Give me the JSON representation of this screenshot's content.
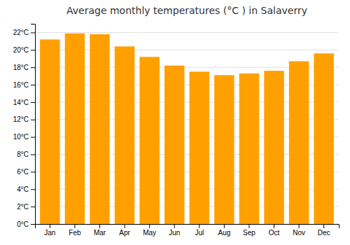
{
  "chart_data": {
    "type": "bar",
    "title": "Average monthly temperatures (°C ) in Salaverry",
    "categories": [
      "Jan",
      "Feb",
      "Mar",
      "Apr",
      "May",
      "Jun",
      "Jul",
      "Aug",
      "Sep",
      "Oct",
      "Nov",
      "Dec"
    ],
    "values": [
      21.2,
      21.9,
      21.8,
      20.4,
      19.2,
      18.2,
      17.5,
      17.1,
      17.3,
      17.6,
      18.7,
      19.6
    ],
    "color": "#FFA000",
    "ylim": [
      0,
      23
    ],
    "yticks": [
      {
        "value": 0,
        "label": "0°C"
      },
      {
        "value": 2,
        "label": "2°C"
      },
      {
        "value": 4,
        "label": "4°C"
      },
      {
        "value": 6,
        "label": "6°C"
      },
      {
        "value": 8,
        "label": "8°C"
      },
      {
        "value": 10,
        "label": "10°C"
      },
      {
        "value": 12,
        "label": "12°C"
      },
      {
        "value": 14,
        "label": "14°C"
      },
      {
        "value": 16,
        "label": "16°C"
      },
      {
        "value": 18,
        "label": "18°C"
      },
      {
        "value": 20,
        "label": "20°C"
      },
      {
        "value": 22,
        "label": "22°C"
      }
    ],
    "grid": true
  }
}
